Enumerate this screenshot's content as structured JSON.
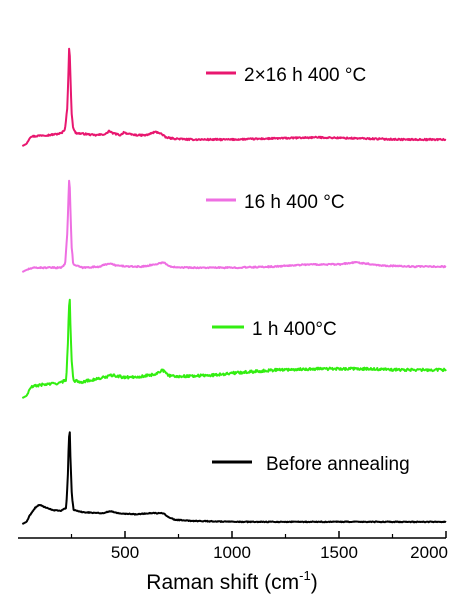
{
  "chart_data": {
    "type": "line",
    "xlabel": "Raman shift (cm",
    "xlabel_superscript": "-1",
    "xlabel_suffix": ")",
    "ylabel": "",
    "xlim": [
      0,
      2000
    ],
    "x_ticks": [
      500,
      1000,
      1500,
      2000
    ],
    "x_tick_labels": [
      "500",
      "1000",
      "1500",
      "2000"
    ],
    "grid": false,
    "legend_placement": "per-trace, right of each spectrum",
    "y_axis_shown": false,
    "series": [
      {
        "name": "2×16 h 400 °C",
        "color": "#e8176f",
        "offset": 3,
        "noise": 0.007,
        "points": [
          [
            20,
            0.0
          ],
          [
            40,
            0.02
          ],
          [
            50,
            0.06
          ],
          [
            60,
            0.09
          ],
          [
            80,
            0.09
          ],
          [
            110,
            0.1
          ],
          [
            140,
            0.1
          ],
          [
            180,
            0.11
          ],
          [
            205,
            0.12
          ],
          [
            220,
            0.16
          ],
          [
            230,
            0.35
          ],
          [
            236,
            0.7
          ],
          [
            240,
            0.96
          ],
          [
            244,
            0.72
          ],
          [
            250,
            0.32
          ],
          [
            258,
            0.16
          ],
          [
            270,
            0.12
          ],
          [
            320,
            0.11
          ],
          [
            360,
            0.1
          ],
          [
            410,
            0.11
          ],
          [
            425,
            0.14
          ],
          [
            440,
            0.12
          ],
          [
            480,
            0.1
          ],
          [
            495,
            0.13
          ],
          [
            515,
            0.11
          ],
          [
            560,
            0.1
          ],
          [
            600,
            0.1
          ],
          [
            640,
            0.13
          ],
          [
            665,
            0.12
          ],
          [
            690,
            0.08
          ],
          [
            720,
            0.07
          ],
          [
            800,
            0.06
          ],
          [
            1000,
            0.06
          ],
          [
            1200,
            0.07
          ],
          [
            1400,
            0.08
          ],
          [
            1600,
            0.07
          ],
          [
            1800,
            0.06
          ],
          [
            2000,
            0.06
          ]
        ]
      },
      {
        "name": "16 h 400 °C",
        "color": "#ee6fe2",
        "offset": 2,
        "noise": 0.006,
        "points": [
          [
            20,
            0.0
          ],
          [
            40,
            0.02
          ],
          [
            55,
            0.03
          ],
          [
            80,
            0.04
          ],
          [
            150,
            0.04
          ],
          [
            200,
            0.04
          ],
          [
            220,
            0.07
          ],
          [
            230,
            0.35
          ],
          [
            236,
            0.7
          ],
          [
            240,
            0.9
          ],
          [
            244,
            0.66
          ],
          [
            250,
            0.25
          ],
          [
            258,
            0.07
          ],
          [
            300,
            0.04
          ],
          [
            380,
            0.05
          ],
          [
            425,
            0.08
          ],
          [
            460,
            0.06
          ],
          [
            520,
            0.05
          ],
          [
            580,
            0.05
          ],
          [
            640,
            0.07
          ],
          [
            680,
            0.09
          ],
          [
            710,
            0.05
          ],
          [
            800,
            0.04
          ],
          [
            1000,
            0.04
          ],
          [
            1200,
            0.05
          ],
          [
            1350,
            0.07
          ],
          [
            1500,
            0.07
          ],
          [
            1580,
            0.09
          ],
          [
            1620,
            0.08
          ],
          [
            1700,
            0.06
          ],
          [
            1850,
            0.05
          ],
          [
            2000,
            0.05
          ]
        ]
      },
      {
        "name": "1 h 400°C",
        "color": "#33ee11",
        "offset": 1,
        "noise": 0.012,
        "points": [
          [
            20,
            0.0
          ],
          [
            40,
            0.02
          ],
          [
            60,
            0.1
          ],
          [
            100,
            0.12
          ],
          [
            150,
            0.13
          ],
          [
            200,
            0.14
          ],
          [
            225,
            0.17
          ],
          [
            232,
            0.45
          ],
          [
            238,
            0.85
          ],
          [
            242,
            0.9
          ],
          [
            246,
            0.6
          ],
          [
            252,
            0.3
          ],
          [
            260,
            0.16
          ],
          [
            300,
            0.15
          ],
          [
            380,
            0.18
          ],
          [
            440,
            0.21
          ],
          [
            500,
            0.19
          ],
          [
            580,
            0.2
          ],
          [
            640,
            0.22
          ],
          [
            675,
            0.26
          ],
          [
            700,
            0.21
          ],
          [
            750,
            0.2
          ],
          [
            900,
            0.21
          ],
          [
            1000,
            0.23
          ],
          [
            1200,
            0.26
          ],
          [
            1400,
            0.27
          ],
          [
            1600,
            0.27
          ],
          [
            1800,
            0.26
          ],
          [
            2000,
            0.26
          ]
        ]
      },
      {
        "name": "Before annealing",
        "color": "#000000",
        "offset": 0,
        "noise": 0.004,
        "points": [
          [
            20,
            0.0
          ],
          [
            40,
            0.02
          ],
          [
            55,
            0.08
          ],
          [
            80,
            0.15
          ],
          [
            100,
            0.18
          ],
          [
            120,
            0.16
          ],
          [
            160,
            0.13
          ],
          [
            200,
            0.12
          ],
          [
            225,
            0.15
          ],
          [
            232,
            0.4
          ],
          [
            238,
            0.8
          ],
          [
            242,
            0.85
          ],
          [
            246,
            0.55
          ],
          [
            252,
            0.25
          ],
          [
            260,
            0.13
          ],
          [
            300,
            0.11
          ],
          [
            400,
            0.1
          ],
          [
            430,
            0.12
          ],
          [
            470,
            0.1
          ],
          [
            550,
            0.09
          ],
          [
            620,
            0.1
          ],
          [
            680,
            0.1
          ],
          [
            700,
            0.07
          ],
          [
            730,
            0.04
          ],
          [
            800,
            0.03
          ],
          [
            1000,
            0.02
          ],
          [
            1500,
            0.02
          ],
          [
            2000,
            0.02
          ]
        ]
      }
    ]
  }
}
